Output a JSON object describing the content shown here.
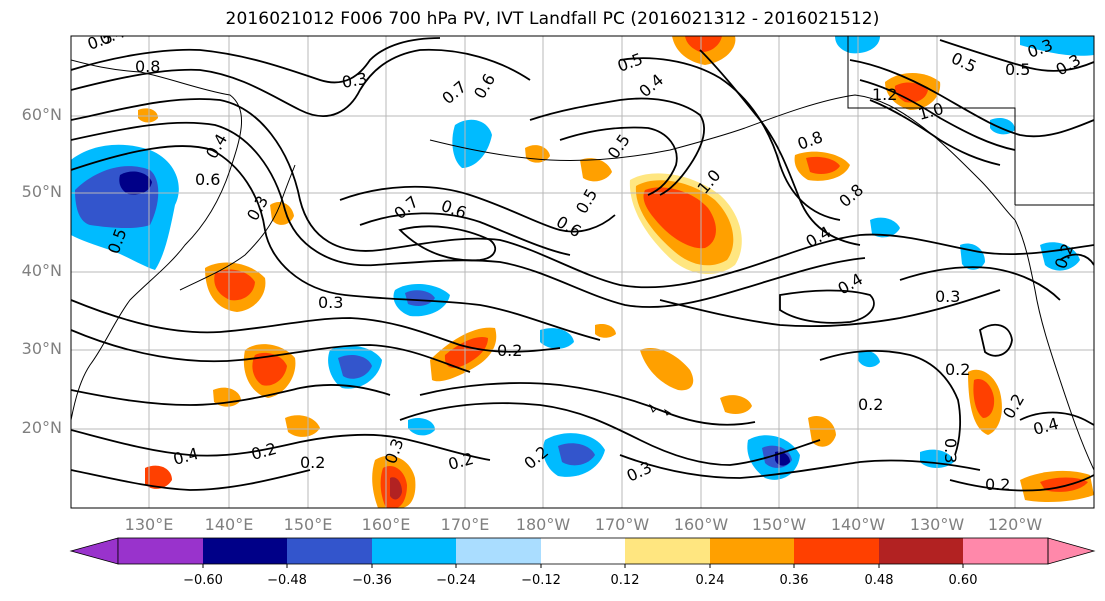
{
  "title": "2016021012 F006 700 hPa PV, IVT Landfall PC (2016021312 - 2016021512)",
  "lat_labels": [
    "60°N",
    "50°N",
    "40°N",
    "30°N",
    "20°N"
  ],
  "lon_labels": [
    "130°E",
    "140°E",
    "150°E",
    "160°E",
    "170°E",
    "180°W",
    "170°W",
    "160°W",
    "150°W",
    "140°W",
    "130°W",
    "120°W"
  ],
  "colorbar": {
    "tick_labels": [
      "−0.60",
      "−0.48",
      "−0.36",
      "−0.24",
      "−0.12",
      "0.12",
      "0.24",
      "0.36",
      "0.48",
      "0.60"
    ],
    "colors": [
      "#9933cc",
      "#000088",
      "#3355cc",
      "#00bbff",
      "#aaddff",
      "#ffffff",
      "#ffe680",
      "#ffa000",
      "#ff4000",
      "#b22222",
      "#ff88aa"
    ]
  },
  "contour_labels": [
    "0.5",
    "0.4",
    "0.8",
    "0.3",
    "0.7",
    "0.6",
    "0.5",
    "0.4",
    "0.5",
    "0.3",
    "0.5",
    "0.3",
    "1.2",
    "1.0",
    "0.8",
    "1.0",
    "0.8",
    "0.5",
    "0.6",
    "0.6",
    "0.5",
    "0.4",
    "0.7",
    "0.6",
    "0.5",
    "0.3",
    "0.4",
    "0.3",
    "0.2",
    "0.3",
    "0.4",
    "0.2",
    "0.2",
    "0.2",
    "0.2",
    "0.2",
    "0.2",
    "0.4",
    "0.3",
    "0.2",
    "0.3",
    "0.4",
    "0.2",
    "0.2",
    "0.3"
  ]
}
